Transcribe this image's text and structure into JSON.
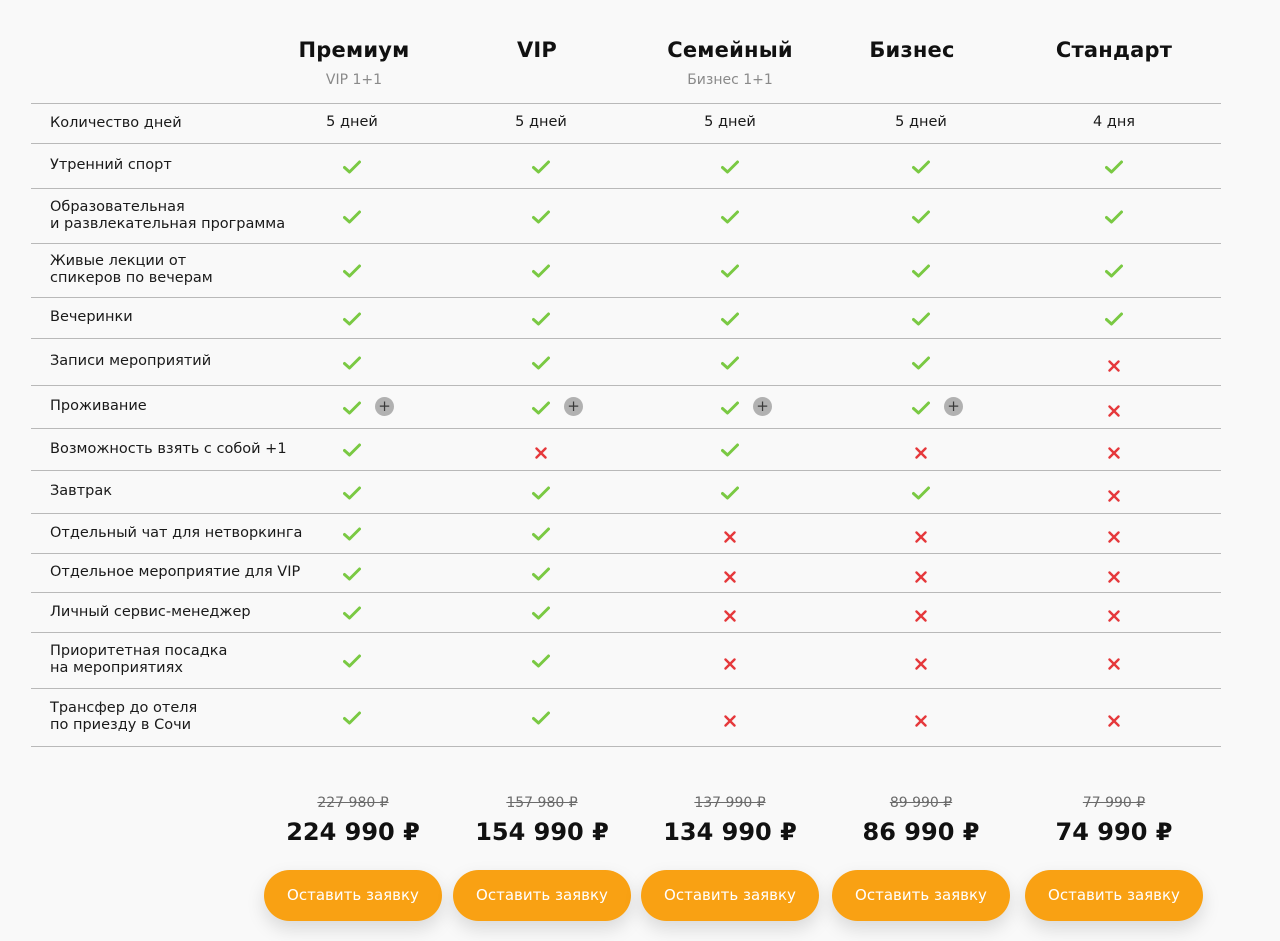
{
  "plans": [
    {
      "name": "Премиум",
      "subtitle": "VIP 1+1",
      "old_price": "227 980 ₽",
      "price": "224 990 ₽",
      "button": "Оставить заявку"
    },
    {
      "name": "VIP",
      "subtitle": "",
      "old_price": "157 980 ₽",
      "price": "154 990 ₽",
      "button": "Оставить заявку"
    },
    {
      "name": "Семейный",
      "subtitle": "Бизнес 1+1",
      "old_price": "137 990 ₽",
      "price": "134 990 ₽",
      "button": "Оставить заявку"
    },
    {
      "name": "Бизнес",
      "subtitle": "",
      "old_price": "89 990 ₽",
      "price": "86 990 ₽",
      "button": "Оставить заявку"
    },
    {
      "name": "Стандарт",
      "subtitle": "",
      "old_price": "77 990 ₽",
      "price": "74 990 ₽",
      "button": "Оставить заявку"
    }
  ],
  "features": [
    {
      "label": "Количество дней",
      "values": [
        "5 дней",
        "5 дней",
        "5 дней",
        "5 дней",
        "4 дня"
      ]
    },
    {
      "label": "Утренний спорт",
      "values": [
        "yes",
        "yes",
        "yes",
        "yes",
        "yes"
      ]
    },
    {
      "label": "Образовательная\nи развлекательная программа",
      "values": [
        "yes",
        "yes",
        "yes",
        "yes",
        "yes"
      ]
    },
    {
      "label": "Живые лекции от\nспикеров по вечерам",
      "values": [
        "yes",
        "yes",
        "yes",
        "yes",
        "yes"
      ]
    },
    {
      "label": "Вечеринки",
      "values": [
        "yes",
        "yes",
        "yes",
        "yes",
        "yes"
      ]
    },
    {
      "label": "Записи мероприятий",
      "values": [
        "yes",
        "yes",
        "yes",
        "yes",
        "no"
      ]
    },
    {
      "label": "Проживание",
      "values": [
        "yes+",
        "yes+",
        "yes+",
        "yes+",
        "no"
      ]
    },
    {
      "label": "Возможность взять с собой +1",
      "values": [
        "yes",
        "no",
        "yes",
        "no",
        "no"
      ]
    },
    {
      "label": "Завтрак",
      "values": [
        "yes",
        "yes",
        "yes",
        "yes",
        "no"
      ]
    },
    {
      "label": "Отдельный чат для нетворкинга",
      "values": [
        "yes",
        "yes",
        "no",
        "no",
        "no"
      ]
    },
    {
      "label": "Отдельное мероприятие для VIP",
      "values": [
        "yes",
        "yes",
        "no",
        "no",
        "no"
      ]
    },
    {
      "label": "Личный сервис-менеджер",
      "values": [
        "yes",
        "yes",
        "no",
        "no",
        "no"
      ]
    },
    {
      "label": "Приоритетная посадка\nна мероприятиях",
      "values": [
        "yes",
        "yes",
        "no",
        "no",
        "no"
      ]
    },
    {
      "label": "Трансфер до отеля\nпо приезду в Сочи",
      "values": [
        "yes",
        "yes",
        "no",
        "no",
        "no"
      ]
    }
  ],
  "icons": {
    "yes": "check-icon",
    "no": "cross-icon",
    "plus": "plus-icon"
  },
  "colors": {
    "check": "#7ac943",
    "cross": "#e5383b",
    "button": "#f9a113",
    "plus_badge": "#b1b1b1"
  }
}
